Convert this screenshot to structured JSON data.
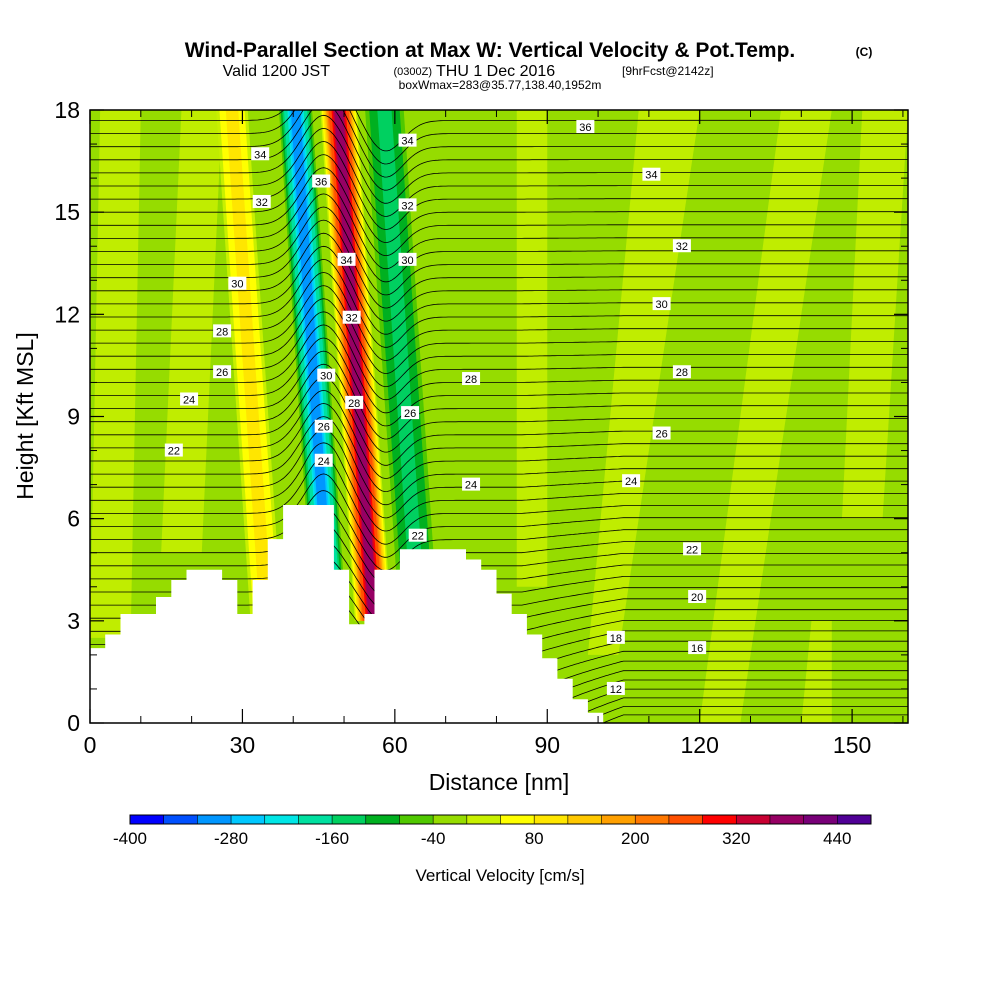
{
  "chart_data": {
    "type": "heatmap",
    "title": "Wind-Parallel Section at Max W: Vertical Velocity & Pot.Temp.",
    "title_suffix": "(C)",
    "subtitle": {
      "valid": "Valid 1200 JST",
      "utc": "(0300Z)",
      "date": "THU 1 Dec 2016",
      "fcst": "[9hrFcst@2142z]"
    },
    "info_line": "boxWmax=283@35.77,138.40,1952m",
    "xlabel": "Distance [nm]",
    "ylabel": "Height [Kft MSL]",
    "xlim": [
      0,
      161
    ],
    "ylim": [
      0,
      18
    ],
    "xticks": [
      0,
      30,
      60,
      90,
      120,
      150
    ],
    "yticks": [
      0,
      3,
      6,
      9,
      12,
      15,
      18
    ],
    "colorbar": {
      "label": "Vertical Velocity [cm/s]",
      "min": -400,
      "max": 480,
      "tick_labels": [
        -400,
        -280,
        -160,
        -40,
        80,
        200,
        320,
        440
      ],
      "colors": [
        "#0000ff",
        "#0050ff",
        "#0096ff",
        "#00c8ff",
        "#00e6e6",
        "#00e0a0",
        "#00d060",
        "#00b020",
        "#50c800",
        "#96dc00",
        "#c8f000",
        "#ffff00",
        "#ffe600",
        "#ffc800",
        "#ffa000",
        "#ff7800",
        "#ff5000",
        "#ff0000",
        "#c80032",
        "#960064",
        "#780078",
        "#500096"
      ]
    },
    "velocity_columns": [
      {
        "x_center": 32,
        "half_width": 2.5,
        "w": 100
      },
      {
        "x_center": 44.5,
        "half_width": 3,
        "w": -300
      },
      {
        "x_center": 53,
        "half_width": 3,
        "w": 380
      },
      {
        "x_center": 62,
        "half_width": 4,
        "w": -150
      }
    ],
    "theta_contour_labels": [
      {
        "x": 33.5,
        "y": 16.7,
        "v": "34"
      },
      {
        "x": 33.8,
        "y": 15.3,
        "v": "32"
      },
      {
        "x": 29,
        "y": 12.9,
        "v": "30"
      },
      {
        "x": 26,
        "y": 11.5,
        "v": "28"
      },
      {
        "x": 26,
        "y": 10.3,
        "v": "26"
      },
      {
        "x": 19.5,
        "y": 9.5,
        "v": "24"
      },
      {
        "x": 16.5,
        "y": 8.0,
        "v": "22"
      },
      {
        "x": 45.5,
        "y": 15.9,
        "v": "36"
      },
      {
        "x": 50.5,
        "y": 13.6,
        "v": "34"
      },
      {
        "x": 51.5,
        "y": 11.9,
        "v": "32"
      },
      {
        "x": 46.5,
        "y": 10.2,
        "v": "30"
      },
      {
        "x": 52,
        "y": 9.4,
        "v": "28"
      },
      {
        "x": 46,
        "y": 8.7,
        "v": "26"
      },
      {
        "x": 46,
        "y": 7.7,
        "v": "24"
      },
      {
        "x": 62.5,
        "y": 17.1,
        "v": "34"
      },
      {
        "x": 62.5,
        "y": 15.2,
        "v": "32"
      },
      {
        "x": 62.5,
        "y": 13.6,
        "v": "30"
      },
      {
        "x": 63,
        "y": 9.1,
        "v": "26"
      },
      {
        "x": 75,
        "y": 10.1,
        "v": "28"
      },
      {
        "x": 75,
        "y": 7.0,
        "v": "24"
      },
      {
        "x": 64.5,
        "y": 5.5,
        "v": "22"
      },
      {
        "x": 97.5,
        "y": 17.5,
        "v": "36"
      },
      {
        "x": 110.5,
        "y": 16.1,
        "v": "34"
      },
      {
        "x": 116.5,
        "y": 14.0,
        "v": "32"
      },
      {
        "x": 112.5,
        "y": 12.3,
        "v": "30"
      },
      {
        "x": 116.5,
        "y": 10.3,
        "v": "28"
      },
      {
        "x": 112.5,
        "y": 8.5,
        "v": "26"
      },
      {
        "x": 106.5,
        "y": 7.1,
        "v": "24"
      },
      {
        "x": 118.5,
        "y": 5.1,
        "v": "22"
      },
      {
        "x": 119.5,
        "y": 3.7,
        "v": "20"
      },
      {
        "x": 103.5,
        "y": 2.5,
        "v": "18"
      },
      {
        "x": 119.5,
        "y": 2.2,
        "v": "16"
      },
      {
        "x": 103.5,
        "y": 1.0,
        "v": "12"
      }
    ],
    "terrain": [
      [
        0,
        2.2
      ],
      [
        3,
        2.2
      ],
      [
        3,
        2.6
      ],
      [
        6,
        2.6
      ],
      [
        6,
        3.2
      ],
      [
        13,
        3.2
      ],
      [
        13,
        3.7
      ],
      [
        16,
        3.7
      ],
      [
        16,
        4.2
      ],
      [
        19,
        4.2
      ],
      [
        19,
        4.5
      ],
      [
        26,
        4.5
      ],
      [
        26,
        4.2
      ],
      [
        29,
        4.2
      ],
      [
        29,
        3.2
      ],
      [
        32,
        3.2
      ],
      [
        32,
        4.2
      ],
      [
        35,
        4.2
      ],
      [
        35,
        5.4
      ],
      [
        38,
        5.4
      ],
      [
        38,
        6.4
      ],
      [
        48,
        6.4
      ],
      [
        48,
        4.5
      ],
      [
        51,
        4.5
      ],
      [
        51,
        2.9
      ],
      [
        54,
        2.9
      ],
      [
        54,
        3.2
      ],
      [
        56,
        3.2
      ],
      [
        56,
        4.5
      ],
      [
        61,
        4.5
      ],
      [
        61,
        5.1
      ],
      [
        74,
        5.1
      ],
      [
        74,
        4.8
      ],
      [
        77,
        4.8
      ],
      [
        77,
        4.5
      ],
      [
        80,
        4.5
      ],
      [
        80,
        3.8
      ],
      [
        83,
        3.8
      ],
      [
        83,
        3.2
      ],
      [
        86,
        3.2
      ],
      [
        86,
        2.6
      ],
      [
        89,
        2.6
      ],
      [
        89,
        1.9
      ],
      [
        92,
        1.9
      ],
      [
        92,
        1.3
      ],
      [
        95,
        1.3
      ],
      [
        95,
        0.7
      ],
      [
        98,
        0.7
      ],
      [
        98,
        0.3
      ],
      [
        101,
        0.3
      ],
      [
        101,
        0
      ]
    ]
  }
}
